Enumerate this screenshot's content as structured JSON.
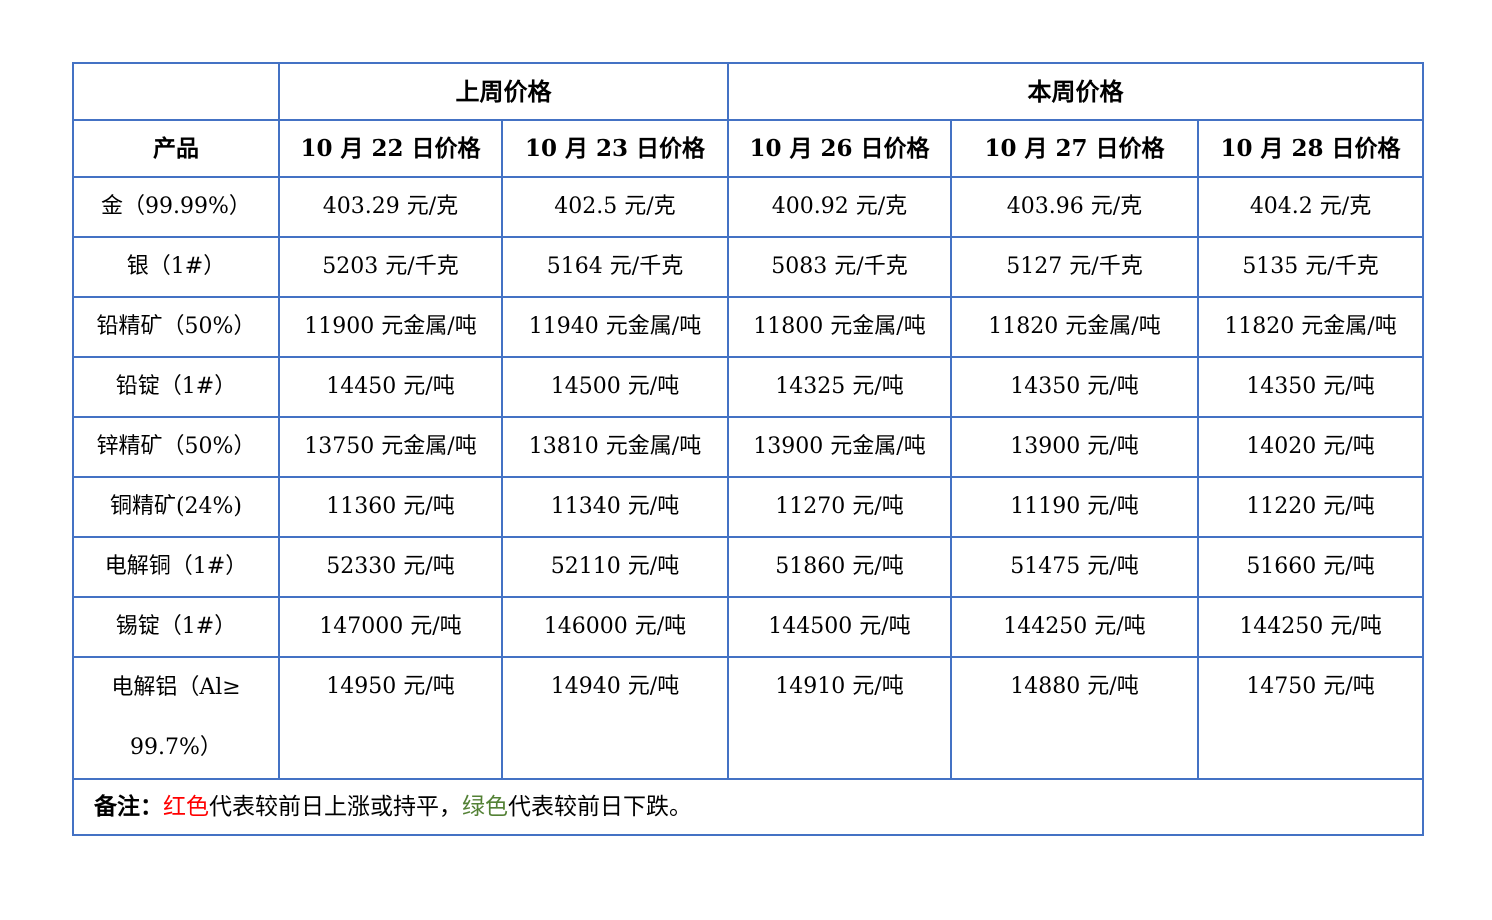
{
  "colors": {
    "red": "#ff0000",
    "green": "#538135",
    "border": "#4472c4",
    "text": "#000000"
  },
  "header": {
    "corner_label": "",
    "last_week_label": "上周价格",
    "this_week_label": "本周价格",
    "product_label": "产品",
    "date_columns": [
      "10 月 22 日价格",
      "10 月 23 日价格",
      "10 月 26 日价格",
      "10 月 27 日价格",
      "10 月 28 日价格"
    ]
  },
  "rows": [
    {
      "product": "金（99.99%）",
      "cells": [
        {
          "text": "403.29 元/克",
          "color": "green"
        },
        {
          "text": "402.5 元/克",
          "color": "green"
        },
        {
          "text": "400.92 元/克",
          "color": "green"
        },
        {
          "text": "403.96 元/克",
          "color": "red"
        },
        {
          "text": "404.2 元/克",
          "color": "red"
        }
      ]
    },
    {
      "product": "银（1#）",
      "cells": [
        {
          "text": "5203 元/千克",
          "color": "green"
        },
        {
          "text": "5164 元/千克",
          "color": "green"
        },
        {
          "text": "5083 元/千克",
          "color": "green"
        },
        {
          "text": "5127 元/千克",
          "color": "red"
        },
        {
          "text": "5135 元/千克",
          "color": "red"
        }
      ]
    },
    {
      "product": "铅精矿（50%）",
      "cells": [
        {
          "text": "11900 元金属/吨",
          "color": "red"
        },
        {
          "text": "11940 元金属/吨",
          "color": "red"
        },
        {
          "text": "11800 元金属/吨",
          "color": "green"
        },
        {
          "text": "11820 元金属/吨",
          "color": "red"
        },
        {
          "text": "11820 元金属/吨",
          "color": "red"
        }
      ]
    },
    {
      "product": "铅锭（1#）",
      "cells": [
        {
          "text": "14450 元/吨",
          "color": "red"
        },
        {
          "text": "14500 元/吨",
          "color": "red"
        },
        {
          "text": "14325 元/吨",
          "color": "green"
        },
        {
          "text": "14350 元/吨",
          "color": "red"
        },
        {
          "text": "14350 元/吨",
          "color": "red"
        }
      ]
    },
    {
      "product": "锌精矿（50%）",
      "cells": [
        {
          "text": "13750 元金属/吨",
          "color": "green"
        },
        {
          "text": "13810 元金属/吨",
          "color": "red"
        },
        {
          "text": "13900 元金属/吨",
          "color": "red"
        },
        {
          "text": "13900 元/吨",
          "color": "red"
        },
        {
          "text": "14020 元/吨",
          "color": "red"
        }
      ]
    },
    {
      "product": "铜精矿(24%)",
      "cells": [
        {
          "text": "11360 元/吨",
          "color": "red"
        },
        {
          "text": "11340 元/吨",
          "color": "green"
        },
        {
          "text": "11270 元/吨",
          "color": "green"
        },
        {
          "text": "11190 元/吨",
          "color": "green"
        },
        {
          "text": "11220 元/吨",
          "color": "red"
        }
      ]
    },
    {
      "product": "电解铜（1#）",
      "cells": [
        {
          "text": "52330 元/吨",
          "color": "red"
        },
        {
          "text": "52110 元/吨",
          "color": "green"
        },
        {
          "text": "51860 元/吨",
          "color": "green"
        },
        {
          "text": "51475 元/吨",
          "color": "green"
        },
        {
          "text": "51660 元/吨",
          "color": "red"
        }
      ]
    },
    {
      "product": "锡锭（1#）",
      "cells": [
        {
          "text": "147000 元/吨",
          "color": "red"
        },
        {
          "text": "146000 元/吨",
          "color": "green"
        },
        {
          "text": "144500 元/吨",
          "color": "green"
        },
        {
          "text": "144250 元/吨",
          "color": "green"
        },
        {
          "text": "144250 元/吨",
          "color": "red"
        }
      ]
    },
    {
      "product": "电解铝（Al≥\n99.7%）",
      "tall": true,
      "cells": [
        {
          "text": "14950 元/吨",
          "color": "red"
        },
        {
          "text": "14940 元/吨",
          "color": "green"
        },
        {
          "text": "14910 元/吨",
          "color": "green"
        },
        {
          "text": "14880 元/吨",
          "color": "green"
        },
        {
          "text": "14750 元/吨",
          "color": "green"
        }
      ]
    }
  ],
  "note": {
    "prefix": "备注：",
    "red_label": "红色",
    "rising_text": "代表较前日上涨或持平，",
    "green_label": "绿色",
    "falling_text": "代表较前日下跌。"
  }
}
